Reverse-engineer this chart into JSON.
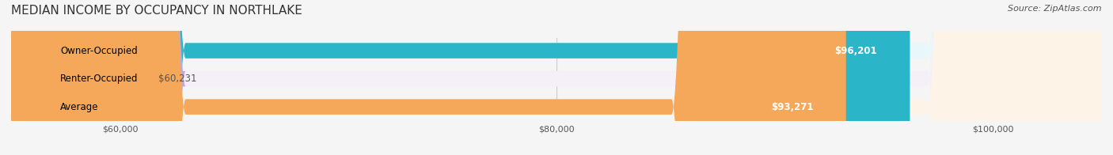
{
  "title": "MEDIAN INCOME BY OCCUPANCY IN NORTHLAKE",
  "source": "Source: ZipAtlas.com",
  "categories": [
    "Owner-Occupied",
    "Renter-Occupied",
    "Average"
  ],
  "values": [
    96201,
    60231,
    93271
  ],
  "bar_colors": [
    "#2bb5c8",
    "#c4a8d4",
    "#f5a85a"
  ],
  "bar_background_colors": [
    "#e8f7f9",
    "#f5f0f8",
    "#fdf3e7"
  ],
  "value_labels": [
    "$96,201",
    "$60,231",
    "$93,271"
  ],
  "xmin": 55000,
  "xmax": 105000,
  "xticks": [
    60000,
    80000,
    100000
  ],
  "xticklabels": [
    "$60,000",
    "$80,000",
    "$100,000"
  ],
  "title_fontsize": 11,
  "source_fontsize": 8,
  "label_fontsize": 8.5,
  "value_fontsize": 8.5,
  "background_color": "#f5f5f5"
}
